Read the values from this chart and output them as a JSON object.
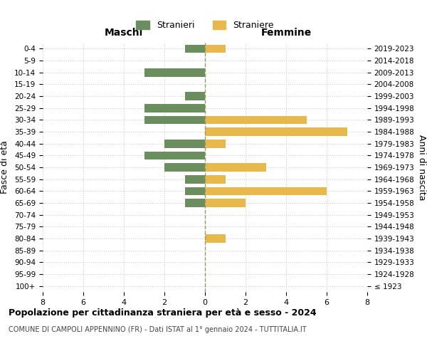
{
  "age_groups": [
    "100+",
    "95-99",
    "90-94",
    "85-89",
    "80-84",
    "75-79",
    "70-74",
    "65-69",
    "60-64",
    "55-59",
    "50-54",
    "45-49",
    "40-44",
    "35-39",
    "30-34",
    "25-29",
    "20-24",
    "15-19",
    "10-14",
    "5-9",
    "0-4"
  ],
  "birth_years": [
    "≤ 1923",
    "1924-1928",
    "1929-1933",
    "1934-1938",
    "1939-1943",
    "1944-1948",
    "1949-1953",
    "1954-1958",
    "1959-1963",
    "1964-1968",
    "1969-1973",
    "1974-1978",
    "1979-1983",
    "1984-1988",
    "1989-1993",
    "1994-1998",
    "1999-2003",
    "2004-2008",
    "2009-2013",
    "2014-2018",
    "2019-2023"
  ],
  "maschi": [
    0,
    0,
    0,
    0,
    0,
    0,
    0,
    1,
    1,
    1,
    2,
    3,
    2,
    0,
    3,
    3,
    1,
    0,
    3,
    0,
    1
  ],
  "femmine": [
    0,
    0,
    0,
    0,
    1,
    0,
    0,
    2,
    6,
    1,
    3,
    0,
    1,
    7,
    5,
    0,
    0,
    0,
    0,
    0,
    1
  ],
  "male_color": "#6B8E5E",
  "female_color": "#E8B84B",
  "title": "Popolazione per cittadinanza straniera per età e sesso - 2024",
  "subtitle": "COMUNE DI CAMPOLI APPENNINO (FR) - Dati ISTAT al 1° gennaio 2024 - TUTTITALIA.IT",
  "legend_male": "Stranieri",
  "legend_female": "Straniere",
  "xlabel_left": "Maschi",
  "xlabel_right": "Femmine",
  "ylabel_left": "Fasce di età",
  "ylabel_right": "Anni di nascita",
  "xlim": 8,
  "bg_color": "#ffffff",
  "grid_color": "#cccccc",
  "dashed_line_color": "#999966"
}
